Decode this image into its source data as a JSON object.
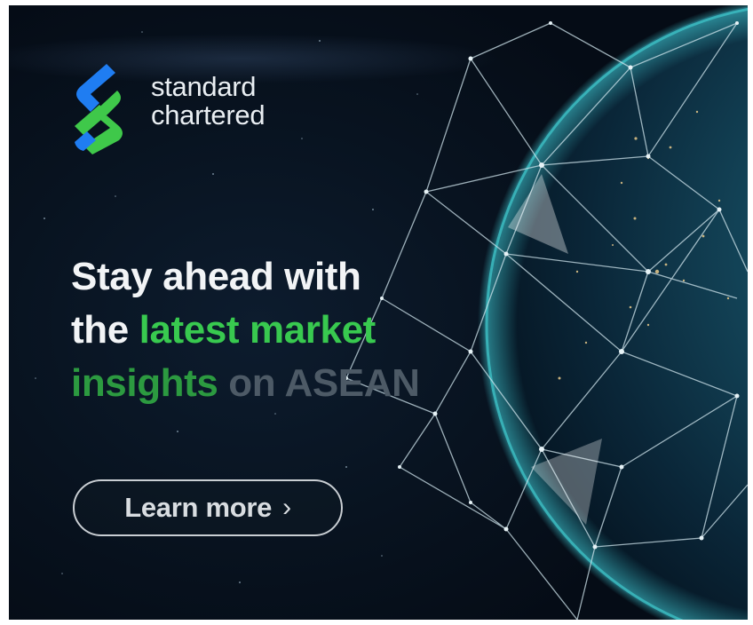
{
  "brand": {
    "name_line1": "standard",
    "name_line2": "chartered",
    "logo_icon": "standard-chartered-logo-icon",
    "colors": {
      "blue": "#1f7df2",
      "green": "#3fc84a"
    }
  },
  "headline": {
    "line1": "Stay ahead with",
    "line2_plain": "the ",
    "line2_highlight": "latest market",
    "line3_highlight": "insights",
    "line3_plain": " on ",
    "line3_faded": "ASEAN"
  },
  "cta": {
    "label": "Learn more",
    "icon": "chevron-right-icon",
    "chevron": "›"
  },
  "colors": {
    "background": "#081320",
    "accent": "#38c94f",
    "globe": "#1b5f78"
  }
}
